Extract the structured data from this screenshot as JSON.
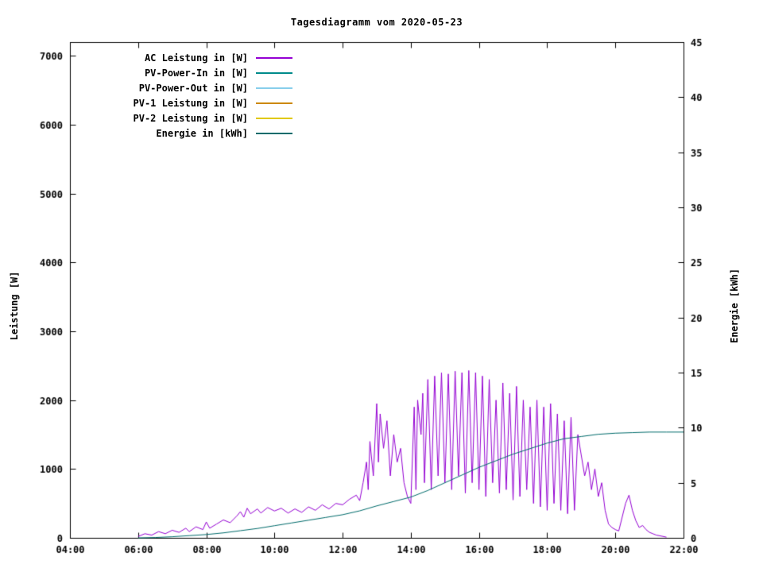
{
  "chart_data": {
    "type": "line",
    "title": "Tagesdiagramm vom 2020-05-23",
    "x_axis": {
      "label": "",
      "range": [
        4,
        22
      ],
      "tick_hours": [
        4,
        6,
        8,
        10,
        12,
        14,
        16,
        18,
        20,
        22
      ],
      "tick_labels": [
        "04:00",
        "06:00",
        "08:00",
        "10:00",
        "12:00",
        "14:00",
        "16:00",
        "18:00",
        "20:00",
        "22:00"
      ]
    },
    "y_left": {
      "label": "Leistung [W]",
      "range": [
        0,
        7200
      ],
      "ticks": [
        0,
        1000,
        2000,
        3000,
        4000,
        5000,
        6000,
        7000
      ]
    },
    "y_right": {
      "label": "Energie [kWh]",
      "range": [
        0,
        45
      ],
      "ticks": [
        0,
        5,
        10,
        15,
        20,
        25,
        30,
        35,
        40,
        45
      ]
    },
    "legend": [
      {
        "label": "AC Leistung in [W]",
        "color": "#9400d3"
      },
      {
        "label": "PV-Power-In in [W]",
        "color": "#008b8b"
      },
      {
        "label": "PV-Power-Out in [W]",
        "color": "#87ceeb"
      },
      {
        "label": "PV-1 Leistung in [W]",
        "color": "#cc8800"
      },
      {
        "label": "PV-2 Leistung in [W]",
        "color": "#e0c800"
      },
      {
        "label": "Energie in [kWh]",
        "color": "#006b6b"
      }
    ],
    "series": [
      {
        "name": "AC Leistung in [W]",
        "axis": "left",
        "color": "#9400d3",
        "width": 1,
        "points": [
          [
            6.0,
            20
          ],
          [
            6.2,
            60
          ],
          [
            6.4,
            40
          ],
          [
            6.6,
            90
          ],
          [
            6.8,
            60
          ],
          [
            7.0,
            110
          ],
          [
            7.2,
            80
          ],
          [
            7.4,
            140
          ],
          [
            7.5,
            90
          ],
          [
            7.7,
            160
          ],
          [
            7.9,
            120
          ],
          [
            8.0,
            230
          ],
          [
            8.1,
            140
          ],
          [
            8.3,
            200
          ],
          [
            8.5,
            260
          ],
          [
            8.7,
            220
          ],
          [
            8.9,
            320
          ],
          [
            9.0,
            380
          ],
          [
            9.1,
            300
          ],
          [
            9.2,
            430
          ],
          [
            9.3,
            350
          ],
          [
            9.5,
            420
          ],
          [
            9.6,
            360
          ],
          [
            9.8,
            440
          ],
          [
            10.0,
            390
          ],
          [
            10.2,
            430
          ],
          [
            10.4,
            360
          ],
          [
            10.6,
            420
          ],
          [
            10.8,
            370
          ],
          [
            11.0,
            450
          ],
          [
            11.2,
            400
          ],
          [
            11.4,
            480
          ],
          [
            11.6,
            420
          ],
          [
            11.8,
            500
          ],
          [
            12.0,
            480
          ],
          [
            12.2,
            560
          ],
          [
            12.4,
            620
          ],
          [
            12.5,
            540
          ],
          [
            12.6,
            800
          ],
          [
            12.7,
            1100
          ],
          [
            12.75,
            700
          ],
          [
            12.8,
            1400
          ],
          [
            12.9,
            900
          ],
          [
            13.0,
            1950
          ],
          [
            13.05,
            1100
          ],
          [
            13.1,
            1800
          ],
          [
            13.2,
            1300
          ],
          [
            13.3,
            1700
          ],
          [
            13.4,
            900
          ],
          [
            13.5,
            1500
          ],
          [
            13.6,
            1100
          ],
          [
            13.7,
            1300
          ],
          [
            13.8,
            800
          ],
          [
            13.9,
            600
          ],
          [
            14.0,
            500
          ],
          [
            14.1,
            1900
          ],
          [
            14.15,
            700
          ],
          [
            14.2,
            2000
          ],
          [
            14.3,
            1500
          ],
          [
            14.35,
            2100
          ],
          [
            14.4,
            800
          ],
          [
            14.5,
            2300
          ],
          [
            14.6,
            700
          ],
          [
            14.7,
            2350
          ],
          [
            14.8,
            900
          ],
          [
            14.9,
            2400
          ],
          [
            15.0,
            800
          ],
          [
            15.1,
            2380
          ],
          [
            15.2,
            700
          ],
          [
            15.3,
            2420
          ],
          [
            15.4,
            900
          ],
          [
            15.5,
            2400
          ],
          [
            15.6,
            650
          ],
          [
            15.7,
            2430
          ],
          [
            15.8,
            800
          ],
          [
            15.9,
            2400
          ],
          [
            16.0,
            700
          ],
          [
            16.1,
            2350
          ],
          [
            16.2,
            600
          ],
          [
            16.3,
            2300
          ],
          [
            16.4,
            800
          ],
          [
            16.5,
            2000
          ],
          [
            16.6,
            650
          ],
          [
            16.7,
            2250
          ],
          [
            16.8,
            700
          ],
          [
            16.9,
            2100
          ],
          [
            17.0,
            550
          ],
          [
            17.1,
            2200
          ],
          [
            17.2,
            600
          ],
          [
            17.3,
            2000
          ],
          [
            17.4,
            700
          ],
          [
            17.5,
            1900
          ],
          [
            17.6,
            500
          ],
          [
            17.7,
            2000
          ],
          [
            17.8,
            450
          ],
          [
            17.9,
            1900
          ],
          [
            18.0,
            400
          ],
          [
            18.1,
            1950
          ],
          [
            18.2,
            500
          ],
          [
            18.3,
            1800
          ],
          [
            18.4,
            400
          ],
          [
            18.5,
            1700
          ],
          [
            18.6,
            350
          ],
          [
            18.7,
            1750
          ],
          [
            18.8,
            400
          ],
          [
            18.9,
            1500
          ],
          [
            19.0,
            1200
          ],
          [
            19.1,
            900
          ],
          [
            19.2,
            1100
          ],
          [
            19.3,
            700
          ],
          [
            19.4,
            1000
          ],
          [
            19.5,
            600
          ],
          [
            19.6,
            800
          ],
          [
            19.7,
            400
          ],
          [
            19.8,
            200
          ],
          [
            19.9,
            150
          ],
          [
            20.0,
            120
          ],
          [
            20.1,
            100
          ],
          [
            20.2,
            300
          ],
          [
            20.3,
            500
          ],
          [
            20.4,
            620
          ],
          [
            20.5,
            400
          ],
          [
            20.6,
            250
          ],
          [
            20.7,
            150
          ],
          [
            20.8,
            180
          ],
          [
            20.9,
            120
          ],
          [
            21.0,
            80
          ],
          [
            21.1,
            60
          ],
          [
            21.2,
            40
          ],
          [
            21.3,
            30
          ],
          [
            21.5,
            10
          ]
        ]
      },
      {
        "name": "Energie in [kWh]",
        "axis": "right",
        "color": "#006b6b",
        "width": 1,
        "points": [
          [
            6.0,
            0
          ],
          [
            6.5,
            0.03
          ],
          [
            7.0,
            0.1
          ],
          [
            7.5,
            0.2
          ],
          [
            8.0,
            0.3
          ],
          [
            8.5,
            0.45
          ],
          [
            9.0,
            0.65
          ],
          [
            9.5,
            0.85
          ],
          [
            10.0,
            1.1
          ],
          [
            10.5,
            1.35
          ],
          [
            11.0,
            1.6
          ],
          [
            11.5,
            1.85
          ],
          [
            12.0,
            2.1
          ],
          [
            12.5,
            2.45
          ],
          [
            13.0,
            2.9
          ],
          [
            13.5,
            3.3
          ],
          [
            14.0,
            3.7
          ],
          [
            14.5,
            4.3
          ],
          [
            15.0,
            5.0
          ],
          [
            15.5,
            5.7
          ],
          [
            16.0,
            6.4
          ],
          [
            16.5,
            7.0
          ],
          [
            17.0,
            7.6
          ],
          [
            17.5,
            8.1
          ],
          [
            18.0,
            8.6
          ],
          [
            18.5,
            9.0
          ],
          [
            19.0,
            9.2
          ],
          [
            19.5,
            9.4
          ],
          [
            20.0,
            9.5
          ],
          [
            20.5,
            9.55
          ],
          [
            21.0,
            9.6
          ],
          [
            21.5,
            9.6
          ],
          [
            22.0,
            9.6
          ]
        ]
      }
    ]
  }
}
